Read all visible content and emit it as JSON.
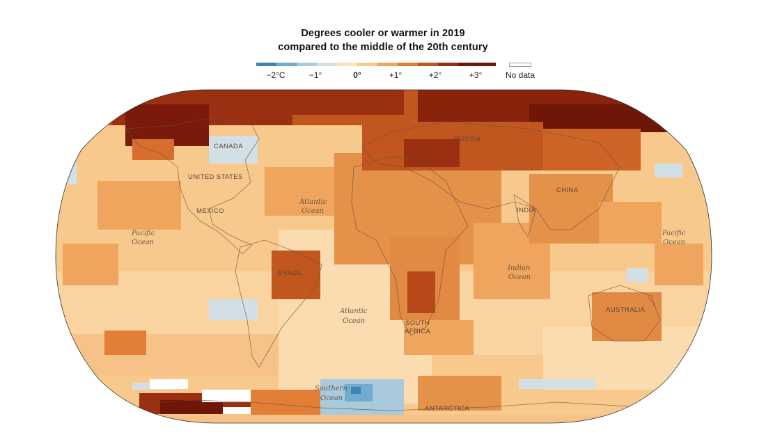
{
  "title": {
    "line1": "Degrees cooler or warmer in 2019",
    "line2": "compared to the middle of the 20th century"
  },
  "legend": {
    "unit": "°C",
    "swatches": [
      {
        "color": "#3b86b4"
      },
      {
        "color": "#71abcd"
      },
      {
        "color": "#a9c9dc"
      },
      {
        "color": "#d3dfe7"
      },
      {
        "color": "#fde3bd"
      },
      {
        "color": "#f8c98c"
      },
      {
        "color": "#efa55e"
      },
      {
        "color": "#e17f36"
      },
      {
        "color": "#c2561f"
      },
      {
        "color": "#9b2f12"
      },
      {
        "color": "#6e1608"
      }
    ],
    "ticks": [
      {
        "label": "−2°C",
        "value": -2
      },
      {
        "label": "−1°",
        "value": -1
      },
      {
        "label": "0°",
        "value": 0
      },
      {
        "label": "+1°",
        "value": 1
      },
      {
        "label": "+2°",
        "value": 2
      },
      {
        "label": "+3°",
        "value": 3
      }
    ],
    "no_data_label": "No data",
    "no_data_color": "#ffffff"
  },
  "map": {
    "projection": "Robinson (world, Pacific-centered edges)",
    "ocean_base_color": "#f8c98c",
    "country_labels": [
      {
        "id": "canada",
        "text": "CANADA"
      },
      {
        "id": "united-states",
        "text": "UNITED STATES"
      },
      {
        "id": "mexico",
        "text": "MEXICO"
      },
      {
        "id": "brazil",
        "text": "BRAZIL"
      },
      {
        "id": "russia",
        "text": "RUSSIA"
      },
      {
        "id": "china",
        "text": "CHINA"
      },
      {
        "id": "india",
        "text": "INDIA"
      },
      {
        "id": "south-africa-1",
        "text": "SOUTH"
      },
      {
        "id": "south-africa-2",
        "text": "AFRICA"
      },
      {
        "id": "australia",
        "text": "AUSTRALIA"
      },
      {
        "id": "antarctica",
        "text": "ANTARCTICA"
      }
    ],
    "ocean_labels": [
      {
        "id": "pacific-west-1",
        "text": "Pacific"
      },
      {
        "id": "pacific-west-2",
        "text": "Ocean"
      },
      {
        "id": "atlantic-north-1",
        "text": "Atlantic"
      },
      {
        "id": "atlantic-north-2",
        "text": "Ocean"
      },
      {
        "id": "atlantic-south-1",
        "text": "Atlantic"
      },
      {
        "id": "atlantic-south-2",
        "text": "Ocean"
      },
      {
        "id": "indian-1",
        "text": "Indian"
      },
      {
        "id": "indian-2",
        "text": "Ocean"
      },
      {
        "id": "pacific-east-1",
        "text": "Pacific"
      },
      {
        "id": "pacific-east-2",
        "text": "Ocean"
      },
      {
        "id": "southern-1",
        "text": "Southern"
      },
      {
        "id": "southern-2",
        "text": "Ocean"
      }
    ]
  }
}
